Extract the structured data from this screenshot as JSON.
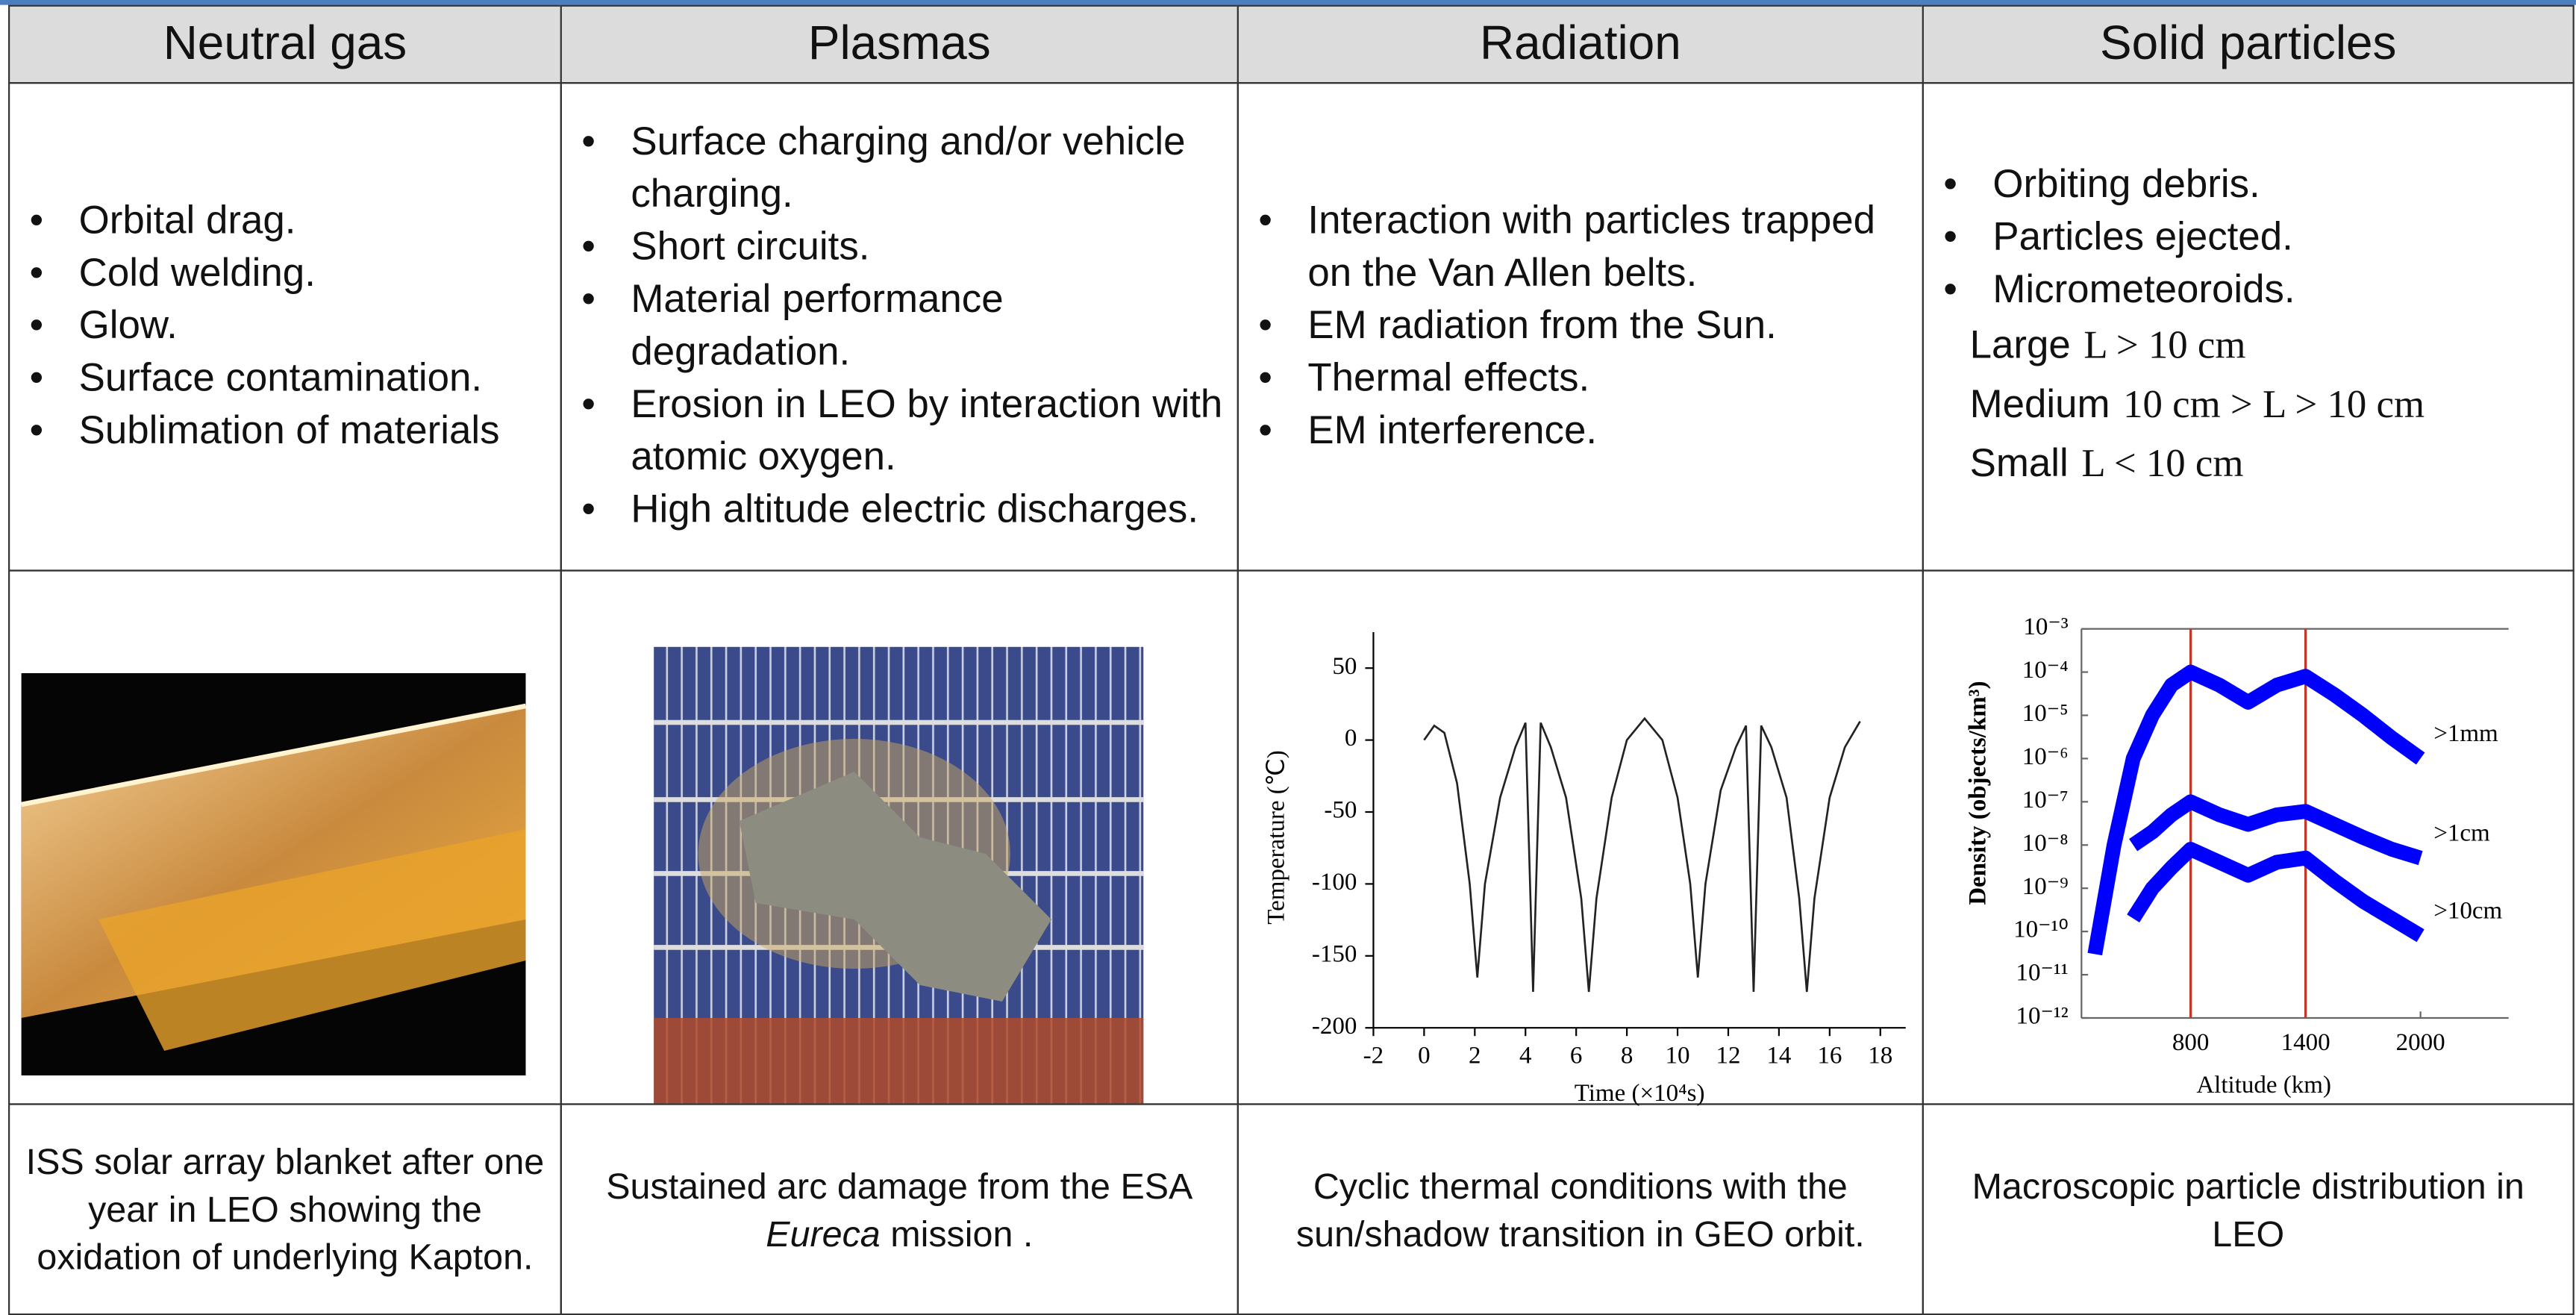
{
  "table": {
    "headers": [
      "Neutral gas",
      "Plasmas",
      "Radiation",
      "Solid particles"
    ],
    "bullets": [
      [
        "Orbital drag.",
        "Cold welding.",
        "Glow.",
        "Surface contamination.",
        "Sublimation of materials"
      ],
      [
        "Surface charging and/or vehicle charging.",
        "Short circuits.",
        "Material performance degradation.",
        "Erosion in LEO by interaction with atomic oxygen.",
        "High altitude electric discharges."
      ],
      [
        "Interaction with particles trapped on the Van Allen belts.",
        "EM radiation from the Sun.",
        "Thermal effects.",
        "EM interference."
      ],
      [
        "Orbiting debris.",
        "Particles ejected.",
        "Micrometeoroids."
      ]
    ],
    "sizes": [
      {
        "label": "Large",
        "condition": "L > 10 cm"
      },
      {
        "label": "Medium",
        "condition": "10 cm > L > 10 cm"
      },
      {
        "label": "Small",
        "condition": "L < 10 cm"
      }
    ],
    "captions": [
      [
        "ISS solar array blanket after one year in LEO showing the oxidation of underlying Kapton."
      ],
      [
        "Sustained arc damage from the ESA ",
        "Eureca",
        " mission ."
      ],
      [
        "Cyclic thermal conditions with the sun/shadow transition in GEO orbit."
      ],
      [
        "Macroscopic particle distribution in LEO"
      ]
    ]
  },
  "temperature_chart": {
    "type": "line",
    "x_label": "Time (×10⁴s)",
    "y_label": "Temperature (℃)",
    "xlim": [
      -2,
      19
    ],
    "ylim": [
      -200,
      75
    ],
    "xticks": [
      -2,
      0,
      2,
      4,
      6,
      8,
      10,
      12,
      14,
      16,
      18
    ],
    "yticks": [
      50,
      0,
      -50,
      -100,
      -150,
      -200
    ],
    "color": "#222222",
    "x": [
      0,
      0.4,
      0.8,
      1.3,
      1.8,
      2.1,
      2.4,
      3,
      3.6,
      4.0,
      4.3,
      4.6,
      5.0,
      5.6,
      6.2,
      6.5,
      6.8,
      7.4,
      8.0,
      8.7,
      9.4,
      10,
      10.5,
      10.8,
      11.1,
      11.7,
      12.3,
      12.7,
      13.0,
      13.3,
      13.7,
      14.3,
      14.8,
      15.1,
      15.4,
      16,
      16.6,
      17.2
    ],
    "values": [
      0,
      10,
      5,
      -30,
      -100,
      -165,
      -100,
      -40,
      -5,
      12,
      -175,
      12,
      -5,
      -40,
      -110,
      -175,
      -110,
      -40,
      0,
      15,
      0,
      -40,
      -100,
      -165,
      -100,
      -35,
      -5,
      10,
      -175,
      10,
      -5,
      -40,
      -110,
      -175,
      -110,
      -40,
      -5,
      13
    ]
  },
  "density_chart": {
    "type": "band",
    "x_label": "Altitude (km)",
    "y_label": "Density (objects/km³)",
    "log_y": true,
    "xlim": [
      230,
      2460
    ],
    "ylim": [
      1e-12,
      0.001
    ],
    "xticks": [
      800,
      1400,
      2000
    ],
    "yticks": [
      {
        "value": 0.001,
        "label": "10⁻³"
      },
      {
        "value": 0.0001,
        "label": "10⁻⁴"
      },
      {
        "value": 1e-05,
        "label": "10⁻⁵"
      },
      {
        "value": 1e-06,
        "label": "10⁻⁶"
      },
      {
        "value": 1e-07,
        "label": "10⁻⁷"
      },
      {
        "value": 1e-08,
        "label": "10⁻⁸"
      },
      {
        "value": 1e-09,
        "label": "10⁻⁹"
      },
      {
        "value": 1e-10,
        "label": "10⁻¹⁰"
      },
      {
        "value": 1e-11,
        "label": "10⁻¹¹"
      },
      {
        "value": 1e-12,
        "label": "10⁻¹²"
      }
    ],
    "markers": [
      800,
      1400
    ],
    "marker_color": "#c0392b",
    "x": [
      300,
      400,
      500,
      600,
      700,
      800,
      950,
      1100,
      1250,
      1400,
      1550,
      1700,
      1850,
      2000
    ],
    "series": [
      {
        "name": ">1mm",
        "color": "#0000ff",
        "values": [
          3e-11,
          1e-08,
          1e-06,
          1e-05,
          5e-05,
          0.0001,
          5e-05,
          2e-05,
          5e-05,
          8e-05,
          3e-05,
          1e-05,
          3e-06,
          1e-06
        ]
      },
      {
        "name": ">1cm",
        "color": "#0000ff",
        "values": [
          null,
          null,
          1e-08,
          2e-08,
          5e-08,
          1e-07,
          5e-08,
          3e-08,
          5e-08,
          6e-08,
          3e-08,
          1.5e-08,
          8e-09,
          5e-09
        ]
      },
      {
        "name": ">10cm",
        "color": "#0000ff",
        "values": [
          null,
          null,
          2e-10,
          1e-09,
          3e-09,
          8e-09,
          4e-09,
          2e-09,
          4e-09,
          5e-09,
          1.5e-09,
          5e-10,
          2e-10,
          8e-11
        ]
      }
    ]
  }
}
